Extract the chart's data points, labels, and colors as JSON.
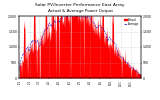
{
  "title": "Solar PV/Inverter Performance East Array",
  "title2": "Actual & Average Power Output",
  "title_fontsize": 3.5,
  "bg_color": "#ffffff",
  "plot_bg_color": "#ffffff",
  "bar_color": "#ff0000",
  "avg_line_color": "#0000cc",
  "grid_color": "#aaaaaa",
  "ylim": [
    0,
    2000
  ],
  "n_points": 365,
  "legend_actual": "Actual",
  "legend_average": "Average",
  "ytick_labels": [
    "0",
    "500",
    "1,000",
    "1,500",
    "2,000"
  ],
  "ytick_values": [
    0,
    500,
    1000,
    1500,
    2000
  ],
  "month_positions": [
    0,
    31,
    59,
    90,
    120,
    151,
    181,
    212,
    243,
    273,
    304,
    334
  ],
  "month_labels": [
    "1/1",
    "2/1",
    "3/1",
    "4/1",
    "5/1",
    "6/1",
    "7/1",
    "8/1",
    "9/1",
    "10/1",
    "11/1",
    "12/1"
  ]
}
